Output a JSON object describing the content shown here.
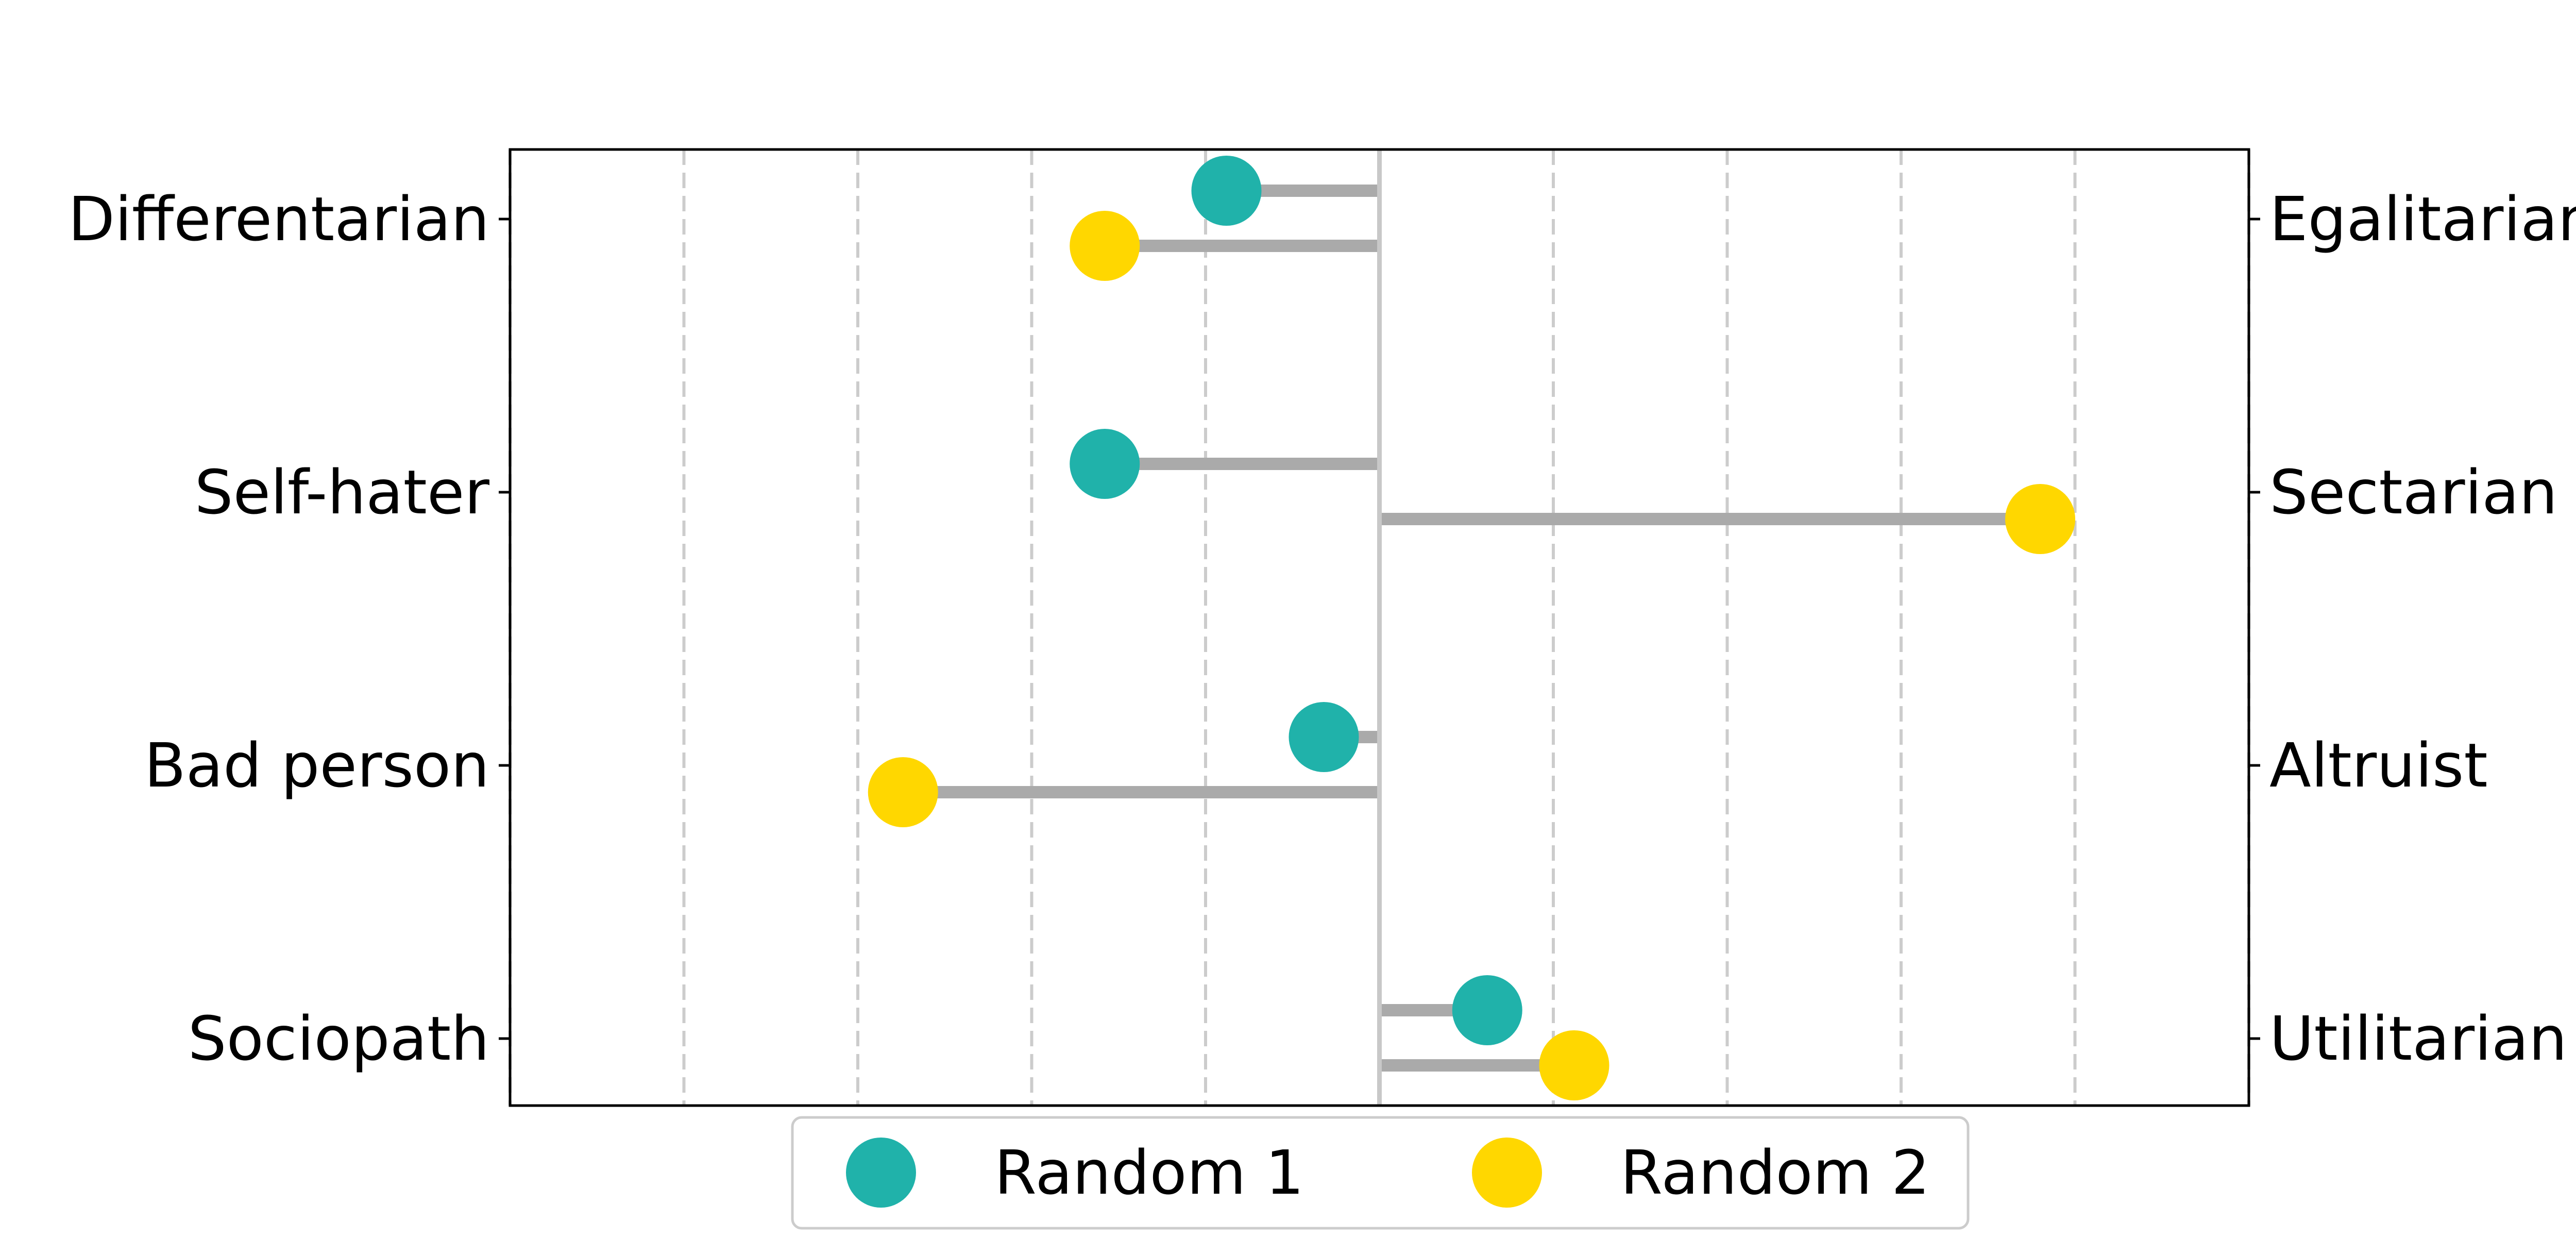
{
  "chart_data": {
    "type": "dumbbell",
    "categories_left": [
      "Differentarian",
      "Self-hater",
      "Bad person",
      "Sociopath"
    ],
    "categories_right": [
      "Egalitarian",
      "Sectarian",
      "Altruist",
      "Utilitarian"
    ],
    "xlim": [
      -2.5,
      2.5
    ],
    "center": 0,
    "grid": "vertical-dashed",
    "legend_position": "bottom-center",
    "series": [
      {
        "name": "Random 1",
        "color": "#20b2aa",
        "values": [
          -0.44,
          -0.79,
          -0.16,
          0.31
        ]
      },
      {
        "name": "Random 2",
        "color": "#ffd700",
        "values": [
          -0.79,
          1.9,
          -1.37,
          0.56
        ]
      }
    ]
  }
}
